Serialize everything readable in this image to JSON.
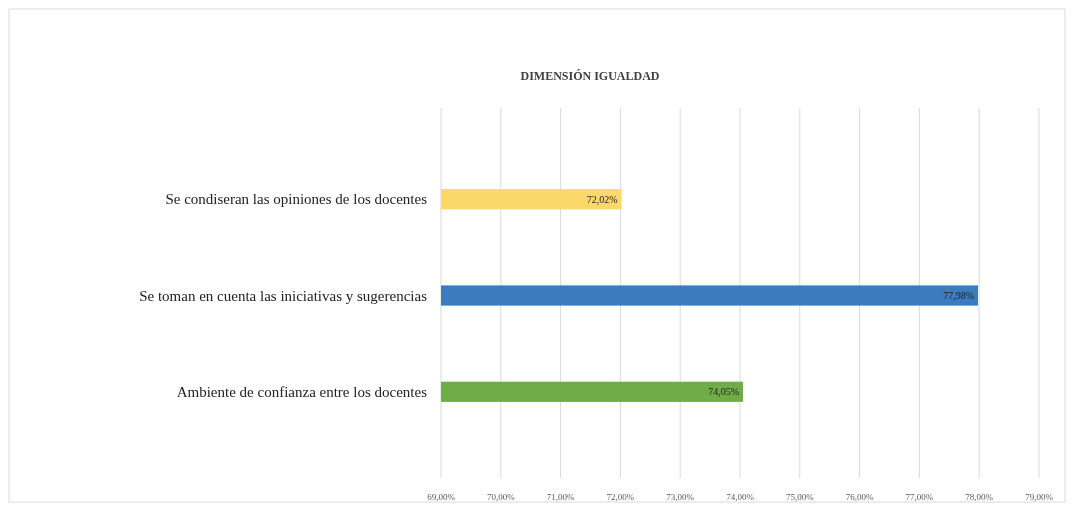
{
  "chart_data": {
    "type": "bar",
    "orientation": "horizontal",
    "title": "DIMENSIÓN IGUALDAD",
    "categories": [
      "Se condiseran las opiniones de los docentes",
      "Se toman en cuenta las iniciativas y sugerencias",
      "Ambiente de confianza entre los docentes"
    ],
    "values": [
      72.02,
      77.98,
      74.05
    ],
    "value_labels": [
      "72,02%",
      "77,98%",
      "74,05%"
    ],
    "colors": [
      "#fbd86a",
      "#3a7cbd",
      "#70ad47"
    ],
    "xlim": [
      69,
      79
    ],
    "xticks": [
      {
        "value": 69,
        "label": "69,00%"
      },
      {
        "value": 70,
        "label": "70,00%"
      },
      {
        "value": 71,
        "label": "71,00%"
      },
      {
        "value": 72,
        "label": "72,00%"
      },
      {
        "value": 73,
        "label": "73,00%"
      },
      {
        "value": 74,
        "label": "74,00%"
      },
      {
        "value": 75,
        "label": "75,00%"
      },
      {
        "value": 76,
        "label": "76,00%"
      },
      {
        "value": 77,
        "label": "77,00%"
      },
      {
        "value": 78,
        "label": "78,00%"
      },
      {
        "value": 79,
        "label": "79,00%"
      }
    ],
    "grid": "x"
  }
}
